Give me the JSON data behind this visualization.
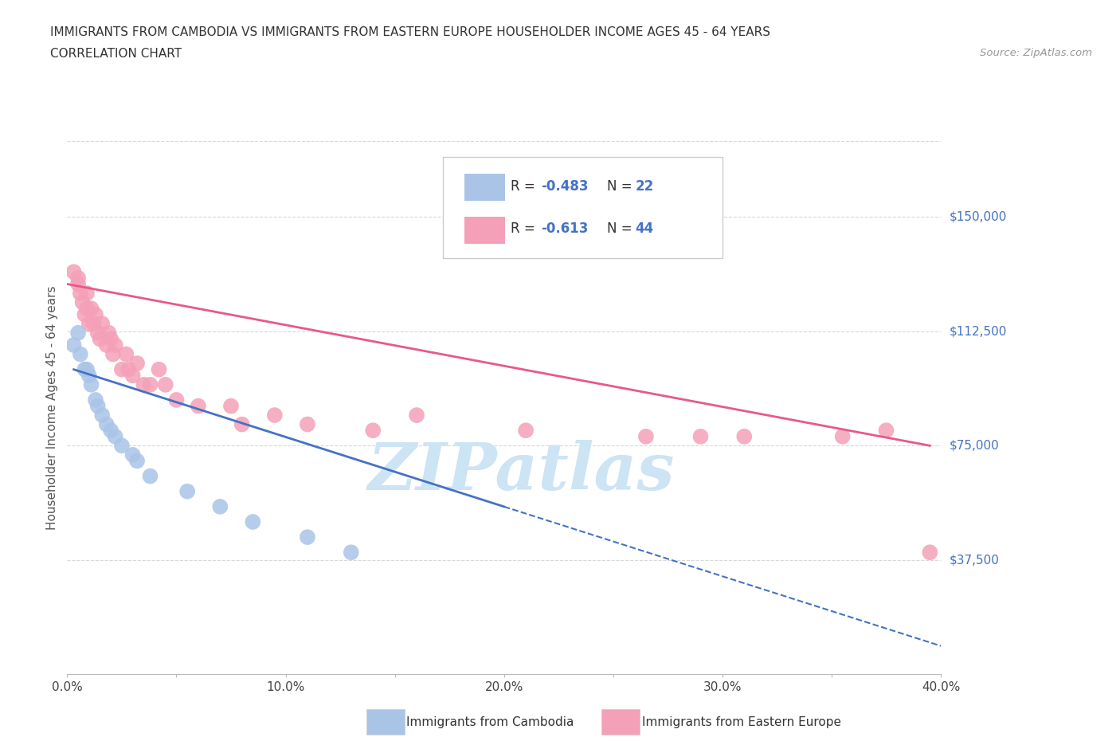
{
  "title_line1": "IMMIGRANTS FROM CAMBODIA VS IMMIGRANTS FROM EASTERN EUROPE HOUSEHOLDER INCOME AGES 45 - 64 YEARS",
  "title_line2": "CORRELATION CHART",
  "source_text": "Source: ZipAtlas.com",
  "ylabel": "Householder Income Ages 45 - 64 years",
  "xlim": [
    0.0,
    0.4
  ],
  "ylim": [
    0,
    175000
  ],
  "xtick_labels": [
    "0.0%",
    "",
    "10.0%",
    "",
    "20.0%",
    "",
    "30.0%",
    "",
    "40.0%"
  ],
  "xtick_values": [
    0.0,
    0.05,
    0.1,
    0.15,
    0.2,
    0.25,
    0.3,
    0.35,
    0.4
  ],
  "ytick_labels": [
    "$37,500",
    "$75,000",
    "$112,500",
    "$150,000"
  ],
  "ytick_values": [
    37500,
    75000,
    112500,
    150000
  ],
  "cambodia_R": -0.483,
  "cambodia_N": 22,
  "eastern_europe_R": -0.613,
  "eastern_europe_N": 44,
  "cambodia_color": "#aac4e8",
  "eastern_europe_color": "#f4a0b8",
  "cambodia_line_color": "#4472c4",
  "eastern_europe_line_color": "#e8588c",
  "watermark_color": "#cce4f4",
  "legend_R_color": "#4472c4",
  "background_color": "#ffffff",
  "grid_color": "#d8d8d8",
  "cambodia_x": [
    0.003,
    0.005,
    0.006,
    0.008,
    0.009,
    0.01,
    0.011,
    0.013,
    0.014,
    0.016,
    0.018,
    0.02,
    0.022,
    0.025,
    0.03,
    0.032,
    0.038,
    0.055,
    0.07,
    0.085,
    0.11,
    0.13
  ],
  "cambodia_y": [
    108000,
    112000,
    105000,
    100000,
    100000,
    98000,
    95000,
    90000,
    88000,
    85000,
    82000,
    80000,
    78000,
    75000,
    72000,
    70000,
    65000,
    60000,
    55000,
    50000,
    45000,
    40000
  ],
  "eastern_europe_x": [
    0.003,
    0.005,
    0.005,
    0.006,
    0.007,
    0.008,
    0.009,
    0.009,
    0.01,
    0.011,
    0.012,
    0.013,
    0.014,
    0.015,
    0.016,
    0.018,
    0.019,
    0.02,
    0.021,
    0.022,
    0.025,
    0.027,
    0.028,
    0.03,
    0.032,
    0.035,
    0.038,
    0.042,
    0.045,
    0.05,
    0.06,
    0.075,
    0.08,
    0.095,
    0.11,
    0.14,
    0.16,
    0.21,
    0.265,
    0.29,
    0.31,
    0.355,
    0.375,
    0.395
  ],
  "eastern_europe_y": [
    132000,
    128000,
    130000,
    125000,
    122000,
    118000,
    125000,
    120000,
    115000,
    120000,
    115000,
    118000,
    112000,
    110000,
    115000,
    108000,
    112000,
    110000,
    105000,
    108000,
    100000,
    105000,
    100000,
    98000,
    102000,
    95000,
    95000,
    100000,
    95000,
    90000,
    88000,
    88000,
    82000,
    85000,
    82000,
    80000,
    85000,
    80000,
    78000,
    78000,
    78000,
    78000,
    80000,
    40000
  ],
  "ee_line_x_end": 0.395,
  "cam_line_x_solid_end": 0.2,
  "cam_line_x_dash_end": 0.4
}
